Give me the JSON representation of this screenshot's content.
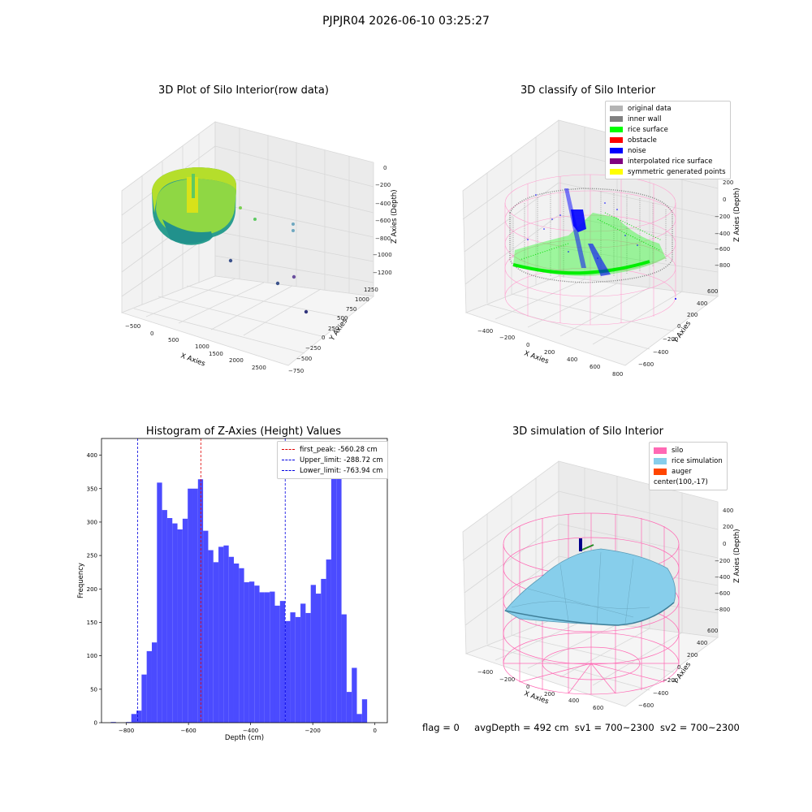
{
  "suptitle": "PJPJR04 2026-06-10 03:25:27",
  "footer": {
    "flag": "flag = 0",
    "avg_depth": "avgDepth = 492 cm",
    "sv1": "sv1 = 700~2300",
    "sv2": "sv2 = 700~2300"
  },
  "colors": {
    "hist_bar": "#4b4bff",
    "first_peak": "#e00000",
    "limits": "#0000e0",
    "silo": "#ff69b4",
    "rice": "#87ceeb",
    "auger": "#ff4500",
    "rice_surface": "#00ff00",
    "noise": "#0000ff",
    "inner_wall": "#808080"
  },
  "chart_data": [
    {
      "type": "scatter3d",
      "title": "3D Plot of Silo Interior(row data)",
      "xlabel": "X Axies",
      "ylabel": "Y Axies",
      "zlabel": "Z Axies (Depth)",
      "xticks": [
        "−500",
        "0",
        "500",
        "1000",
        "1500",
        "2000",
        "2500"
      ],
      "yticks": [
        "−750",
        "−500",
        "−250",
        "0",
        "250",
        "500",
        "750",
        "1000",
        "1250"
      ],
      "zticks": [
        "0",
        "−200",
        "−400",
        "−600",
        "−800",
        "−1000",
        "−1200"
      ]
    },
    {
      "type": "scatter3d",
      "title": "3D classify of Silo Interior",
      "xlabel": "X Axies",
      "ylabel": "Y Axies",
      "zlabel": "Z Axies (Depth)",
      "xticks": [
        "−400",
        "−200",
        "0",
        "200",
        "400",
        "600",
        "800"
      ],
      "yticks": [
        "−600",
        "−400",
        "−200",
        "0",
        "200",
        "400",
        "600"
      ],
      "zticks": [
        "200",
        "0",
        "−200",
        "−400",
        "−600",
        "−800"
      ],
      "zticks_partial": "00",
      "legend": [
        {
          "label": "original data",
          "color": "#b4b4b4"
        },
        {
          "label": "inner wall",
          "color": "#808080"
        },
        {
          "label": "rice surface",
          "color": "#00ff00"
        },
        {
          "label": "obstacle",
          "color": "#ff0000"
        },
        {
          "label": "noise",
          "color": "#0000ff"
        },
        {
          "label": "interpolated rice surface",
          "color": "#800080"
        },
        {
          "label": "symmetric generated points",
          "color": "#ffff00"
        }
      ]
    },
    {
      "type": "bar",
      "title": "Histogram of Z-Axies (Height) Values",
      "xlabel": "Depth (cm)",
      "ylabel": "Frequency",
      "xlim": [
        -880,
        40
      ],
      "ylim": [
        0,
        425
      ],
      "xticks": [
        -800,
        -600,
        -400,
        -200,
        0
      ],
      "yticks": [
        0,
        50,
        100,
        150,
        200,
        250,
        300,
        350,
        400
      ],
      "bin_start": -850,
      "bin_width": 16.5,
      "values": [
        1,
        0,
        0,
        1,
        13,
        18,
        72,
        107,
        120,
        359,
        318,
        306,
        298,
        289,
        305,
        350,
        350,
        364,
        287,
        258,
        240,
        263,
        265,
        248,
        238,
        231,
        210,
        211,
        205,
        195,
        195,
        196,
        175,
        182,
        152,
        165,
        158,
        178,
        164,
        206,
        193,
        215,
        244,
        372,
        398,
        162,
        46,
        82,
        13,
        35
      ],
      "lines": [
        {
          "name": "first_peak: -560.28 cm",
          "x": -560.28,
          "color": "#e00000"
        },
        {
          "name": "Upper_limit: -288.72 cm",
          "x": -288.72,
          "color": "#0000e0"
        },
        {
          "name": "Lower_limit: -763.94 cm",
          "x": -763.94,
          "color": "#0000e0"
        }
      ],
      "legend_position": "top-right"
    },
    {
      "type": "surface3d",
      "title": "3D simulation of Silo Interior",
      "xlabel": "X Axies",
      "ylabel": "Y Axies",
      "zlabel": "Z Axies (Depth)",
      "xticks": [
        "−400",
        "−200",
        "0",
        "200",
        "400",
        "600"
      ],
      "yticks": [
        "−600",
        "−400",
        "−200",
        "0",
        "200",
        "400",
        "600"
      ],
      "zticks": [
        "400",
        "200",
        "0",
        "−200",
        "−400",
        "−600",
        "−800"
      ],
      "legend": [
        {
          "label": "silo",
          "color": "#ff69b4"
        },
        {
          "label": "rice simulation",
          "color": "#87ceeb"
        },
        {
          "label": "auger",
          "color": "#ff4500"
        },
        {
          "label": "center(100,-17)",
          "color": ""
        }
      ]
    }
  ]
}
